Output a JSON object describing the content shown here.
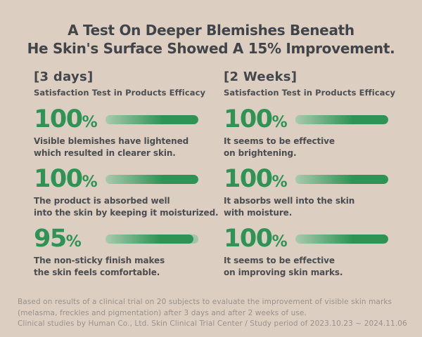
{
  "title": {
    "line1": "A Test On Deeper Blemishes Beneath",
    "line2": "He Skin's Surface Showed A 15% Improvement."
  },
  "columns": [
    {
      "period": "[3 days]",
      "subtitle": "Satisfaction Test in Products Efficacy",
      "stats": [
        {
          "value": "100",
          "unit": "%",
          "percent": 100,
          "desc1": "Visible blemishes have lightened",
          "desc2": "which resulted in clearer skin."
        },
        {
          "value": "100",
          "unit": "%",
          "percent": 100,
          "desc1": "The product is absorbed well",
          "desc2": "into the skin by keeping it moisturized."
        },
        {
          "value": "95",
          "unit": "%",
          "percent": 95,
          "desc1": "The non-sticky finish makes",
          "desc2": "the skin feels comfortable."
        }
      ]
    },
    {
      "period": "[2 Weeks]",
      "subtitle": "Satisfaction Test in Products Efficacy",
      "stats": [
        {
          "value": "100",
          "unit": "%",
          "percent": 100,
          "desc1": "It seems to be effective",
          "desc2": "on brightening."
        },
        {
          "value": "100",
          "unit": "%",
          "percent": 100,
          "desc1": "It absorbs well into the skin",
          "desc2": "with moisture."
        },
        {
          "value": "100",
          "unit": "%",
          "percent": 100,
          "desc1": "It seems to be effective",
          "desc2": "on improving skin marks."
        }
      ]
    }
  ],
  "footer": {
    "line1": "Based on results of a clinical trial on 20 subjects to evaluate the improvement of visible skin marks",
    "line2": "(melasma, freckles and pigmentation) after 3 days and after 2 weeks of use.",
    "line3": "Clinical studies by Human Co., Ltd. Skin Clinical Trial Center / Study period of 2023.10.23 ~ 2024.11.06"
  },
  "colors": {
    "background": "#DCCFC2",
    "heading": "#414549",
    "accent_green": "#2E9355",
    "bar_track_light": "#A2C5A7",
    "bar_gradient_start": "#A9C9AD",
    "body_text": "#4B4D50",
    "footnote": "#98918B"
  },
  "chart_data": {
    "type": "bar",
    "title": "A Test On Deeper Blemishes Beneath He Skin's Surface Showed A 15% Improvement.",
    "unit": "%",
    "xlim": [
      0,
      100
    ],
    "legend_position": "column headers",
    "grid": false,
    "series": [
      {
        "name": "[3 days] Satisfaction Test in Products Efficacy",
        "categories": [
          "Visible blemishes have lightened which resulted in clearer skin.",
          "The product is absorbed well into the skin by keeping it moisturized.",
          "The non-sticky finish makes the skin feels comfortable."
        ],
        "values": [
          100,
          100,
          95
        ]
      },
      {
        "name": "[2 Weeks] Satisfaction Test in Products Efficacy",
        "categories": [
          "It seems to be effective on brightening.",
          "It absorbs well into the skin with moisture.",
          "It seems to be effective on improving skin marks."
        ],
        "values": [
          100,
          100,
          100
        ]
      }
    ],
    "footnote": "Based on results of a clinical trial on 20 subjects to evaluate the improvement of visible skin marks (melasma, freckles and pigmentation) after 3 days and after 2 weeks of use. Clinical studies by Human Co., Ltd. Skin Clinical Trial Center / Study period of 2023.10.23 ~ 2024.11.06"
  }
}
